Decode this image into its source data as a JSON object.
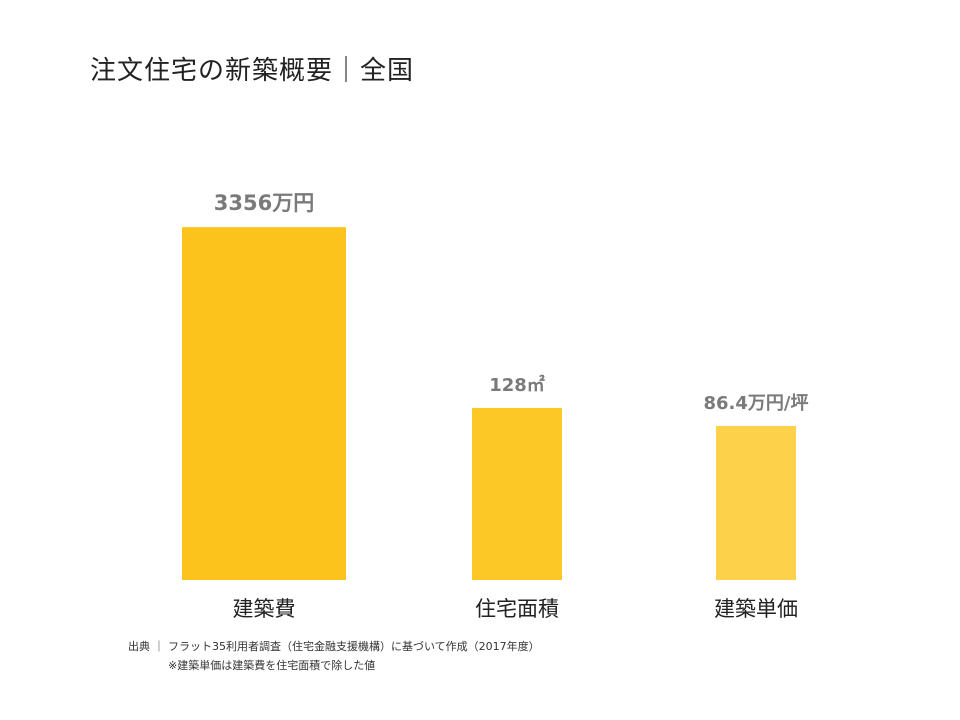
{
  "title": "注文住宅の新築概要｜全国",
  "chart_data": {
    "type": "bar",
    "categories": [
      "建築費",
      "住宅面積",
      "建築単価"
    ],
    "values": [
      3356,
      128,
      86.4
    ],
    "units": [
      "万円",
      "㎡",
      "万円/坪"
    ],
    "value_labels": [
      "3356万円",
      "128㎡",
      "86.4万円/坪"
    ],
    "colors": [
      "#FBC31C",
      "#FBC826",
      "#FDD24A"
    ],
    "title": "",
    "xlabel": "",
    "ylabel": "",
    "grid": false
  },
  "notes": {
    "source": "出典 ｜ フラット35利用者調査（住宅金融支援機構）に基づいて作成（2017年度）",
    "remark": "※建築単価は建築費を住宅面積で除した値"
  }
}
